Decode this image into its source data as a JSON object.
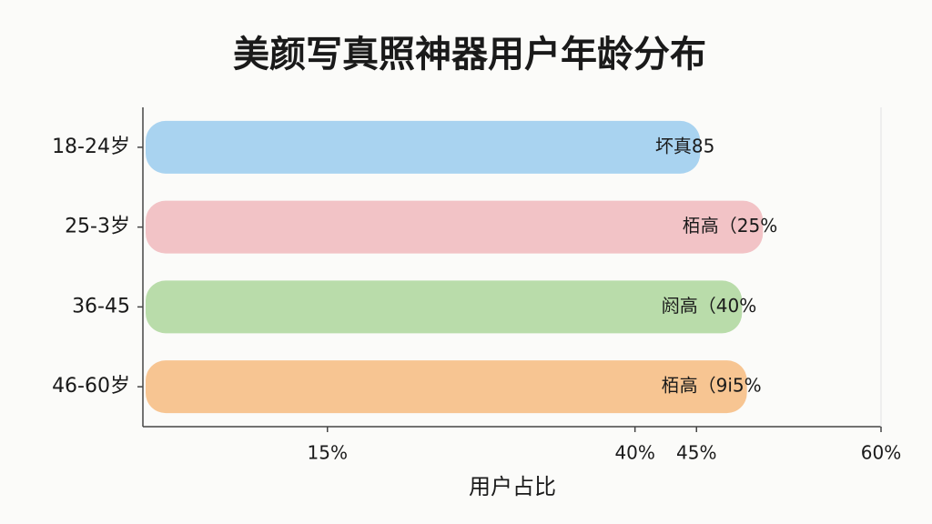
{
  "chart_data": {
    "type": "bar",
    "orientation": "horizontal",
    "title": "美颜写真照神器用户年龄分布",
    "x_label": "用户占比",
    "categories": [
      "18-24岁",
      "25-3岁",
      "36-45",
      "46-60岁"
    ],
    "values": [
      45.3,
      50.4,
      48.7,
      49.1
    ],
    "colors": [
      "#a9d3f0",
      "#f2c3c6",
      "#b9dcaa",
      "#f7c592"
    ],
    "annotations": [
      "坏真85",
      "栢高（25%",
      "阏高（40%",
      "栢高（9i5%"
    ],
    "xlim": [
      0,
      60
    ],
    "xticks": [
      {
        "value": 15,
        "label": "15%"
      },
      {
        "value": 40,
        "label": "40%"
      },
      {
        "value": 45,
        "label": "45%"
      },
      {
        "value": 60,
        "label": "60%"
      }
    ],
    "grid": false
  }
}
